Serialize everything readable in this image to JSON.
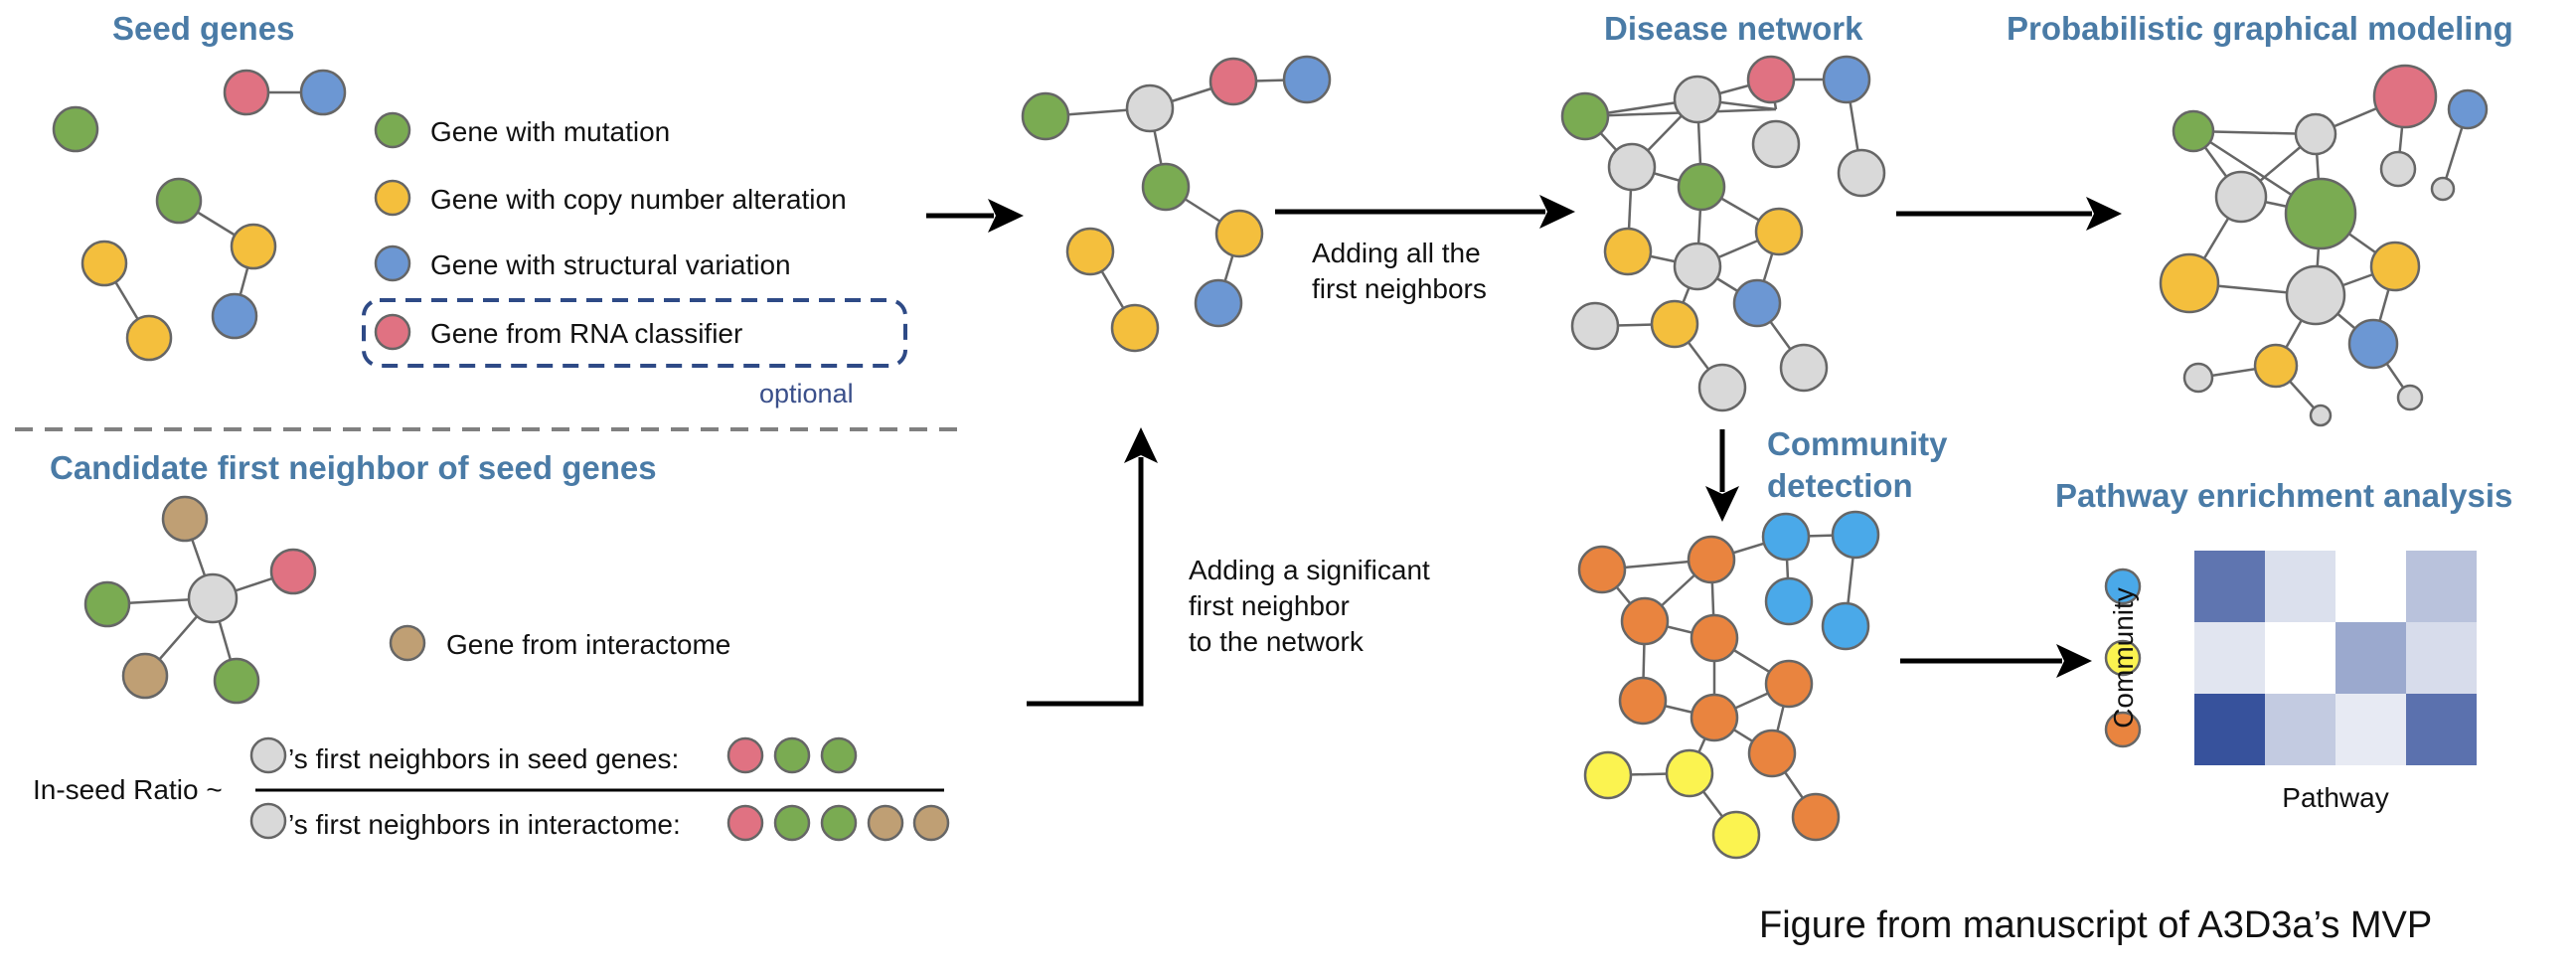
{
  "colors": {
    "mutation": "#7aab52",
    "cna": "#f4bf3d",
    "structural": "#6c97d3",
    "rna": "#e07282",
    "interactome": "#bf9f74",
    "neighbor": "#d9d9d9",
    "community_orange": "#e9843f",
    "community_blue": "#4aa9e9",
    "community_yellow": "#fbf350",
    "heading": "#4a7ba6",
    "optional_box": "#2e4a86"
  },
  "seed": {
    "title": "Seed genes",
    "legend": [
      {
        "label": "Gene with mutation",
        "color": "#7aab52"
      },
      {
        "label": "Gene with copy number alteration",
        "color": "#f4bf3d"
      },
      {
        "label": "Gene with structural variation",
        "color": "#6c97d3"
      },
      {
        "label": "Gene from RNA classifier",
        "color": "#e07282"
      }
    ],
    "optional_label": "optional"
  },
  "candidate": {
    "title": "Candidate first neighbor of seed genes",
    "interactome_label": "Gene from interactome",
    "ratio_label": "In-seed Ratio ~",
    "numerator_text": "’s first neighbors in seed genes:",
    "denominator_text": "’s first neighbors in interactome:"
  },
  "flow": {
    "adding_first_neighbors": [
      "Adding all the",
      "first neighbors"
    ],
    "adding_significant": [
      "Adding a significant",
      "first neighbor",
      "to the network"
    ]
  },
  "disease_network": {
    "title": "Disease network"
  },
  "pgm": {
    "title": "Probabilistic graphical modeling"
  },
  "community": {
    "title": [
      "Community",
      "detection"
    ]
  },
  "pathway": {
    "title": "Pathway enrichment analysis",
    "y_label": "Community",
    "x_label": "Pathway",
    "row_colors": [
      "#4aa9e9",
      "#fbf350",
      "#e9843f"
    ],
    "heat_values": [
      [
        0.8,
        0.18,
        0.0,
        0.35
      ],
      [
        0.15,
        0.0,
        0.5,
        0.2
      ],
      [
        1.0,
        0.3,
        0.12,
        0.82
      ]
    ]
  },
  "caption": "Figure from manuscript of A3D3a’s MVP"
}
